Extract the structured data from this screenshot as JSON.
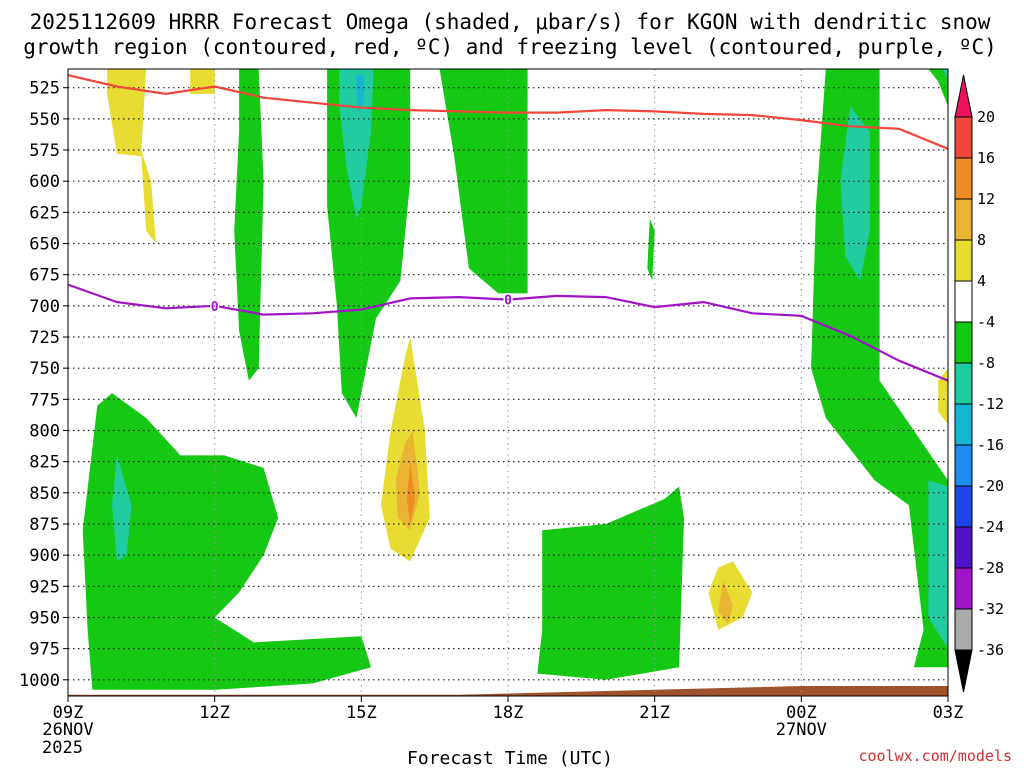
{
  "chart_data": {
    "type": "contour",
    "title_line1": "2025112609 HRRR Forecast Omega (shaded, μbar/s) for KGON with dendritic snow",
    "title_line2": "growth region (contoured, red, ºC) and freezing level (contoured, purple, ºC)",
    "xlabel": "Forecast Time (UTC)",
    "credit": "coolwx.com/models",
    "x_ticks": [
      {
        "hour": 0,
        "label": "09Z",
        "date1": "26NOV",
        "date2": "2025"
      },
      {
        "hour": 3,
        "label": "12Z"
      },
      {
        "hour": 6,
        "label": "15Z"
      },
      {
        "hour": 9,
        "label": "18Z"
      },
      {
        "hour": 12,
        "label": "21Z"
      },
      {
        "hour": 15,
        "label": "00Z",
        "date1": "27NOV"
      },
      {
        "hour": 18,
        "label": "03Z"
      }
    ],
    "x_range_hours": [
      0,
      18
    ],
    "y_ticks": [
      525,
      550,
      575,
      600,
      625,
      650,
      675,
      700,
      725,
      750,
      775,
      800,
      825,
      850,
      875,
      900,
      925,
      950,
      975,
      1000
    ],
    "y_range_hPa": [
      510,
      1013
    ],
    "colorbar": {
      "labels": [
        "20",
        "16",
        "12",
        "8",
        "4",
        "-4",
        "-8",
        "-12",
        "-16",
        "-20",
        "-24",
        "-28",
        "-32",
        "-36"
      ],
      "colors": [
        "#e8135a",
        "#f0463c",
        "#f08c28",
        "#e8b432",
        "#e8dc32",
        "#ffffff",
        "#14c814",
        "#1ecca0",
        "#14b4d2",
        "#1e8cf0",
        "#1e46e6",
        "#5014c8",
        "#a014c8",
        "#aaaaaa",
        "#000000"
      ]
    },
    "dgz_line_red": {
      "label": "",
      "color": "#f0463c",
      "points": [
        [
          0,
          515
        ],
        [
          1,
          524
        ],
        [
          2,
          530
        ],
        [
          3,
          524
        ],
        [
          4,
          533
        ],
        [
          5,
          537
        ],
        [
          6,
          541
        ],
        [
          7,
          543
        ],
        [
          8,
          544
        ],
        [
          9,
          545
        ],
        [
          10,
          545
        ],
        [
          11,
          543
        ],
        [
          12,
          544
        ],
        [
          13,
          546
        ],
        [
          14,
          547
        ],
        [
          15,
          551
        ],
        [
          16,
          556
        ],
        [
          17,
          558
        ],
        [
          18,
          574
        ]
      ]
    },
    "freezing_line_purple": {
      "label": "0",
      "color": "#a014c8",
      "points": [
        [
          0,
          683
        ],
        [
          1,
          697
        ],
        [
          2,
          702
        ],
        [
          3,
          700
        ],
        [
          4,
          707
        ],
        [
          5,
          706
        ],
        [
          6,
          703
        ],
        [
          7,
          694
        ],
        [
          8,
          693
        ],
        [
          9,
          695
        ],
        [
          10,
          692
        ],
        [
          11,
          693
        ],
        [
          12,
          701
        ],
        [
          13,
          697
        ],
        [
          14,
          706
        ],
        [
          15,
          708
        ],
        [
          16,
          724
        ],
        [
          17,
          744
        ],
        [
          18,
          760
        ]
      ]
    },
    "omega_regions": [
      {
        "name": "green-left-upper",
        "level": -4,
        "color": "#14c814",
        "points": [
          [
            3.5,
            510
          ],
          [
            3.9,
            510
          ],
          [
            4.0,
            600
          ],
          [
            3.9,
            750
          ],
          [
            3.7,
            760
          ],
          [
            3.5,
            720
          ],
          [
            3.4,
            640
          ],
          [
            3.5,
            560
          ]
        ]
      },
      {
        "name": "green-15z-column",
        "level": -4,
        "color": "#14c814",
        "points": [
          [
            5.3,
            510
          ],
          [
            7.0,
            510
          ],
          [
            7.0,
            600
          ],
          [
            6.8,
            680
          ],
          [
            6.3,
            710
          ],
          [
            5.9,
            790
          ],
          [
            5.6,
            770
          ],
          [
            5.5,
            700
          ],
          [
            5.3,
            620
          ]
        ]
      },
      {
        "name": "cyan-15z-core",
        "level": -8,
        "color": "#1ecca0",
        "points": [
          [
            5.55,
            510
          ],
          [
            6.25,
            510
          ],
          [
            6.2,
            560
          ],
          [
            6.0,
            620
          ],
          [
            5.9,
            630
          ],
          [
            5.7,
            590
          ],
          [
            5.55,
            540
          ]
        ]
      },
      {
        "name": "blue-15z-core",
        "level": -12,
        "color": "#14b4d2",
        "points": [
          [
            5.9,
            515
          ],
          [
            6.05,
            515
          ],
          [
            6.05,
            535
          ],
          [
            5.95,
            545
          ],
          [
            5.9,
            530
          ]
        ]
      },
      {
        "name": "green-18z-column",
        "level": -4,
        "color": "#14c814",
        "points": [
          [
            7.6,
            510
          ],
          [
            9.4,
            510
          ],
          [
            9.4,
            690
          ],
          [
            8.8,
            690
          ],
          [
            8.2,
            670
          ],
          [
            7.9,
            580
          ]
        ]
      },
      {
        "name": "green-20z-sliver",
        "level": -4,
        "color": "#14c814",
        "points": [
          [
            11.9,
            630
          ],
          [
            12.0,
            640
          ],
          [
            11.95,
            680
          ],
          [
            11.85,
            670
          ]
        ]
      },
      {
        "name": "green-lower-left",
        "level": -4,
        "color": "#14c814",
        "points": [
          [
            0.5,
            1008
          ],
          [
            0.4,
            960
          ],
          [
            0.3,
            880
          ],
          [
            0.6,
            780
          ],
          [
            0.9,
            770
          ],
          [
            1.6,
            790
          ],
          [
            2.3,
            820
          ],
          [
            3.2,
            820
          ],
          [
            4.0,
            830
          ],
          [
            4.3,
            870
          ],
          [
            4.0,
            900
          ],
          [
            3.5,
            930
          ],
          [
            3.0,
            950
          ],
          [
            3.8,
            970
          ],
          [
            6.0,
            965
          ],
          [
            6.2,
            990
          ],
          [
            5.0,
            1003
          ],
          [
            3.0,
            1008
          ]
        ]
      },
      {
        "name": "cyan-lower-left",
        "level": -8,
        "color": "#1ecca0",
        "points": [
          [
            1.0,
            820
          ],
          [
            1.3,
            860
          ],
          [
            1.2,
            900
          ],
          [
            1.0,
            905
          ],
          [
            0.9,
            860
          ]
        ]
      },
      {
        "name": "yellow-16z",
        "level": 4,
        "color": "#e8dc32",
        "points": [
          [
            7.0,
            725
          ],
          [
            7.3,
            800
          ],
          [
            7.4,
            870
          ],
          [
            7.0,
            905
          ],
          [
            6.6,
            895
          ],
          [
            6.4,
            860
          ],
          [
            6.6,
            800
          ],
          [
            6.9,
            740
          ]
        ]
      },
      {
        "name": "orange-16z",
        "level": 8,
        "color": "#e8b432",
        "points": [
          [
            7.05,
            800
          ],
          [
            7.2,
            850
          ],
          [
            7.0,
            880
          ],
          [
            6.75,
            870
          ],
          [
            6.7,
            840
          ],
          [
            6.9,
            810
          ]
        ]
      },
      {
        "name": "red-16z",
        "level": 12,
        "color": "#f08c28",
        "points": [
          [
            7.0,
            825
          ],
          [
            7.1,
            855
          ],
          [
            7.0,
            875
          ],
          [
            6.93,
            855
          ]
        ]
      },
      {
        "name": "green-lower-mid",
        "level": -4,
        "color": "#14c814",
        "points": [
          [
            9.7,
            880
          ],
          [
            11.0,
            875
          ],
          [
            12.2,
            855
          ],
          [
            12.5,
            845
          ],
          [
            12.6,
            870
          ],
          [
            12.5,
            990
          ],
          [
            11.0,
            1000
          ],
          [
            9.6,
            995
          ],
          [
            9.7,
            960
          ]
        ]
      },
      {
        "name": "yellow-22z",
        "level": 4,
        "color": "#e8dc32",
        "points": [
          [
            13.6,
            905
          ],
          [
            14.0,
            930
          ],
          [
            13.8,
            950
          ],
          [
            13.3,
            960
          ],
          [
            13.1,
            930
          ],
          [
            13.3,
            910
          ]
        ]
      },
      {
        "name": "orange-22z",
        "level": 8,
        "color": "#e8b432",
        "points": [
          [
            13.4,
            920
          ],
          [
            13.6,
            940
          ],
          [
            13.5,
            955
          ],
          [
            13.3,
            945
          ]
        ]
      },
      {
        "name": "green-right",
        "level": -4,
        "color": "#14c814",
        "points": [
          [
            15.5,
            510
          ],
          [
            16.6,
            510
          ],
          [
            16.6,
            760
          ],
          [
            17.3,
            800
          ],
          [
            18.0,
            840
          ],
          [
            18.0,
            990
          ],
          [
            17.3,
            990
          ],
          [
            17.5,
            960
          ],
          [
            17.2,
            860
          ],
          [
            16.5,
            840
          ],
          [
            15.5,
            790
          ],
          [
            15.2,
            750
          ],
          [
            15.3,
            620
          ]
        ]
      },
      {
        "name": "cyan-right-upper",
        "level": -8,
        "color": "#1ecca0",
        "points": [
          [
            16.0,
            540
          ],
          [
            16.4,
            560
          ],
          [
            16.4,
            640
          ],
          [
            16.2,
            680
          ],
          [
            15.9,
            660
          ],
          [
            15.8,
            600
          ]
        ]
      },
      {
        "name": "cyan-right-lower",
        "level": -8,
        "color": "#1ecca0",
        "points": [
          [
            17.6,
            840
          ],
          [
            18.0,
            845
          ],
          [
            18.0,
            975
          ],
          [
            17.6,
            950
          ]
        ]
      },
      {
        "name": "green-upper-right-tail",
        "level": -4,
        "color": "#14c814",
        "points": [
          [
            17.6,
            510
          ],
          [
            18.0,
            510
          ],
          [
            18.0,
            540
          ],
          [
            17.8,
            520
          ]
        ]
      },
      {
        "name": "cyan-upper-right-tail",
        "level": -8,
        "color": "#1ecca0",
        "points": [
          [
            17.9,
            510
          ],
          [
            18.0,
            510
          ],
          [
            18.0,
            520
          ]
        ]
      },
      {
        "name": "yellow-upper-left-a",
        "level": 4,
        "color": "#e8dc32",
        "points": [
          [
            0.8,
            510
          ],
          [
            1.6,
            510
          ],
          [
            1.5,
            575
          ],
          [
            1.7,
            600
          ],
          [
            1.8,
            650
          ],
          [
            1.6,
            640
          ],
          [
            1.5,
            580
          ],
          [
            1.0,
            578
          ],
          [
            0.8,
            530
          ]
        ]
      },
      {
        "name": "yellow-upper-left-b",
        "level": 4,
        "color": "#e8dc32",
        "points": [
          [
            2.5,
            510
          ],
          [
            3.0,
            510
          ],
          [
            3.0,
            530
          ],
          [
            2.5,
            530
          ]
        ]
      },
      {
        "name": "yellow-right-edge",
        "level": 4,
        "color": "#e8dc32",
        "points": [
          [
            17.8,
            760
          ],
          [
            18.0,
            750
          ],
          [
            18.0,
            795
          ],
          [
            17.8,
            785
          ]
        ]
      }
    ],
    "terrain": {
      "color": "#a0522d",
      "start_pressure": 1012,
      "end_pressure": 1005
    }
  }
}
